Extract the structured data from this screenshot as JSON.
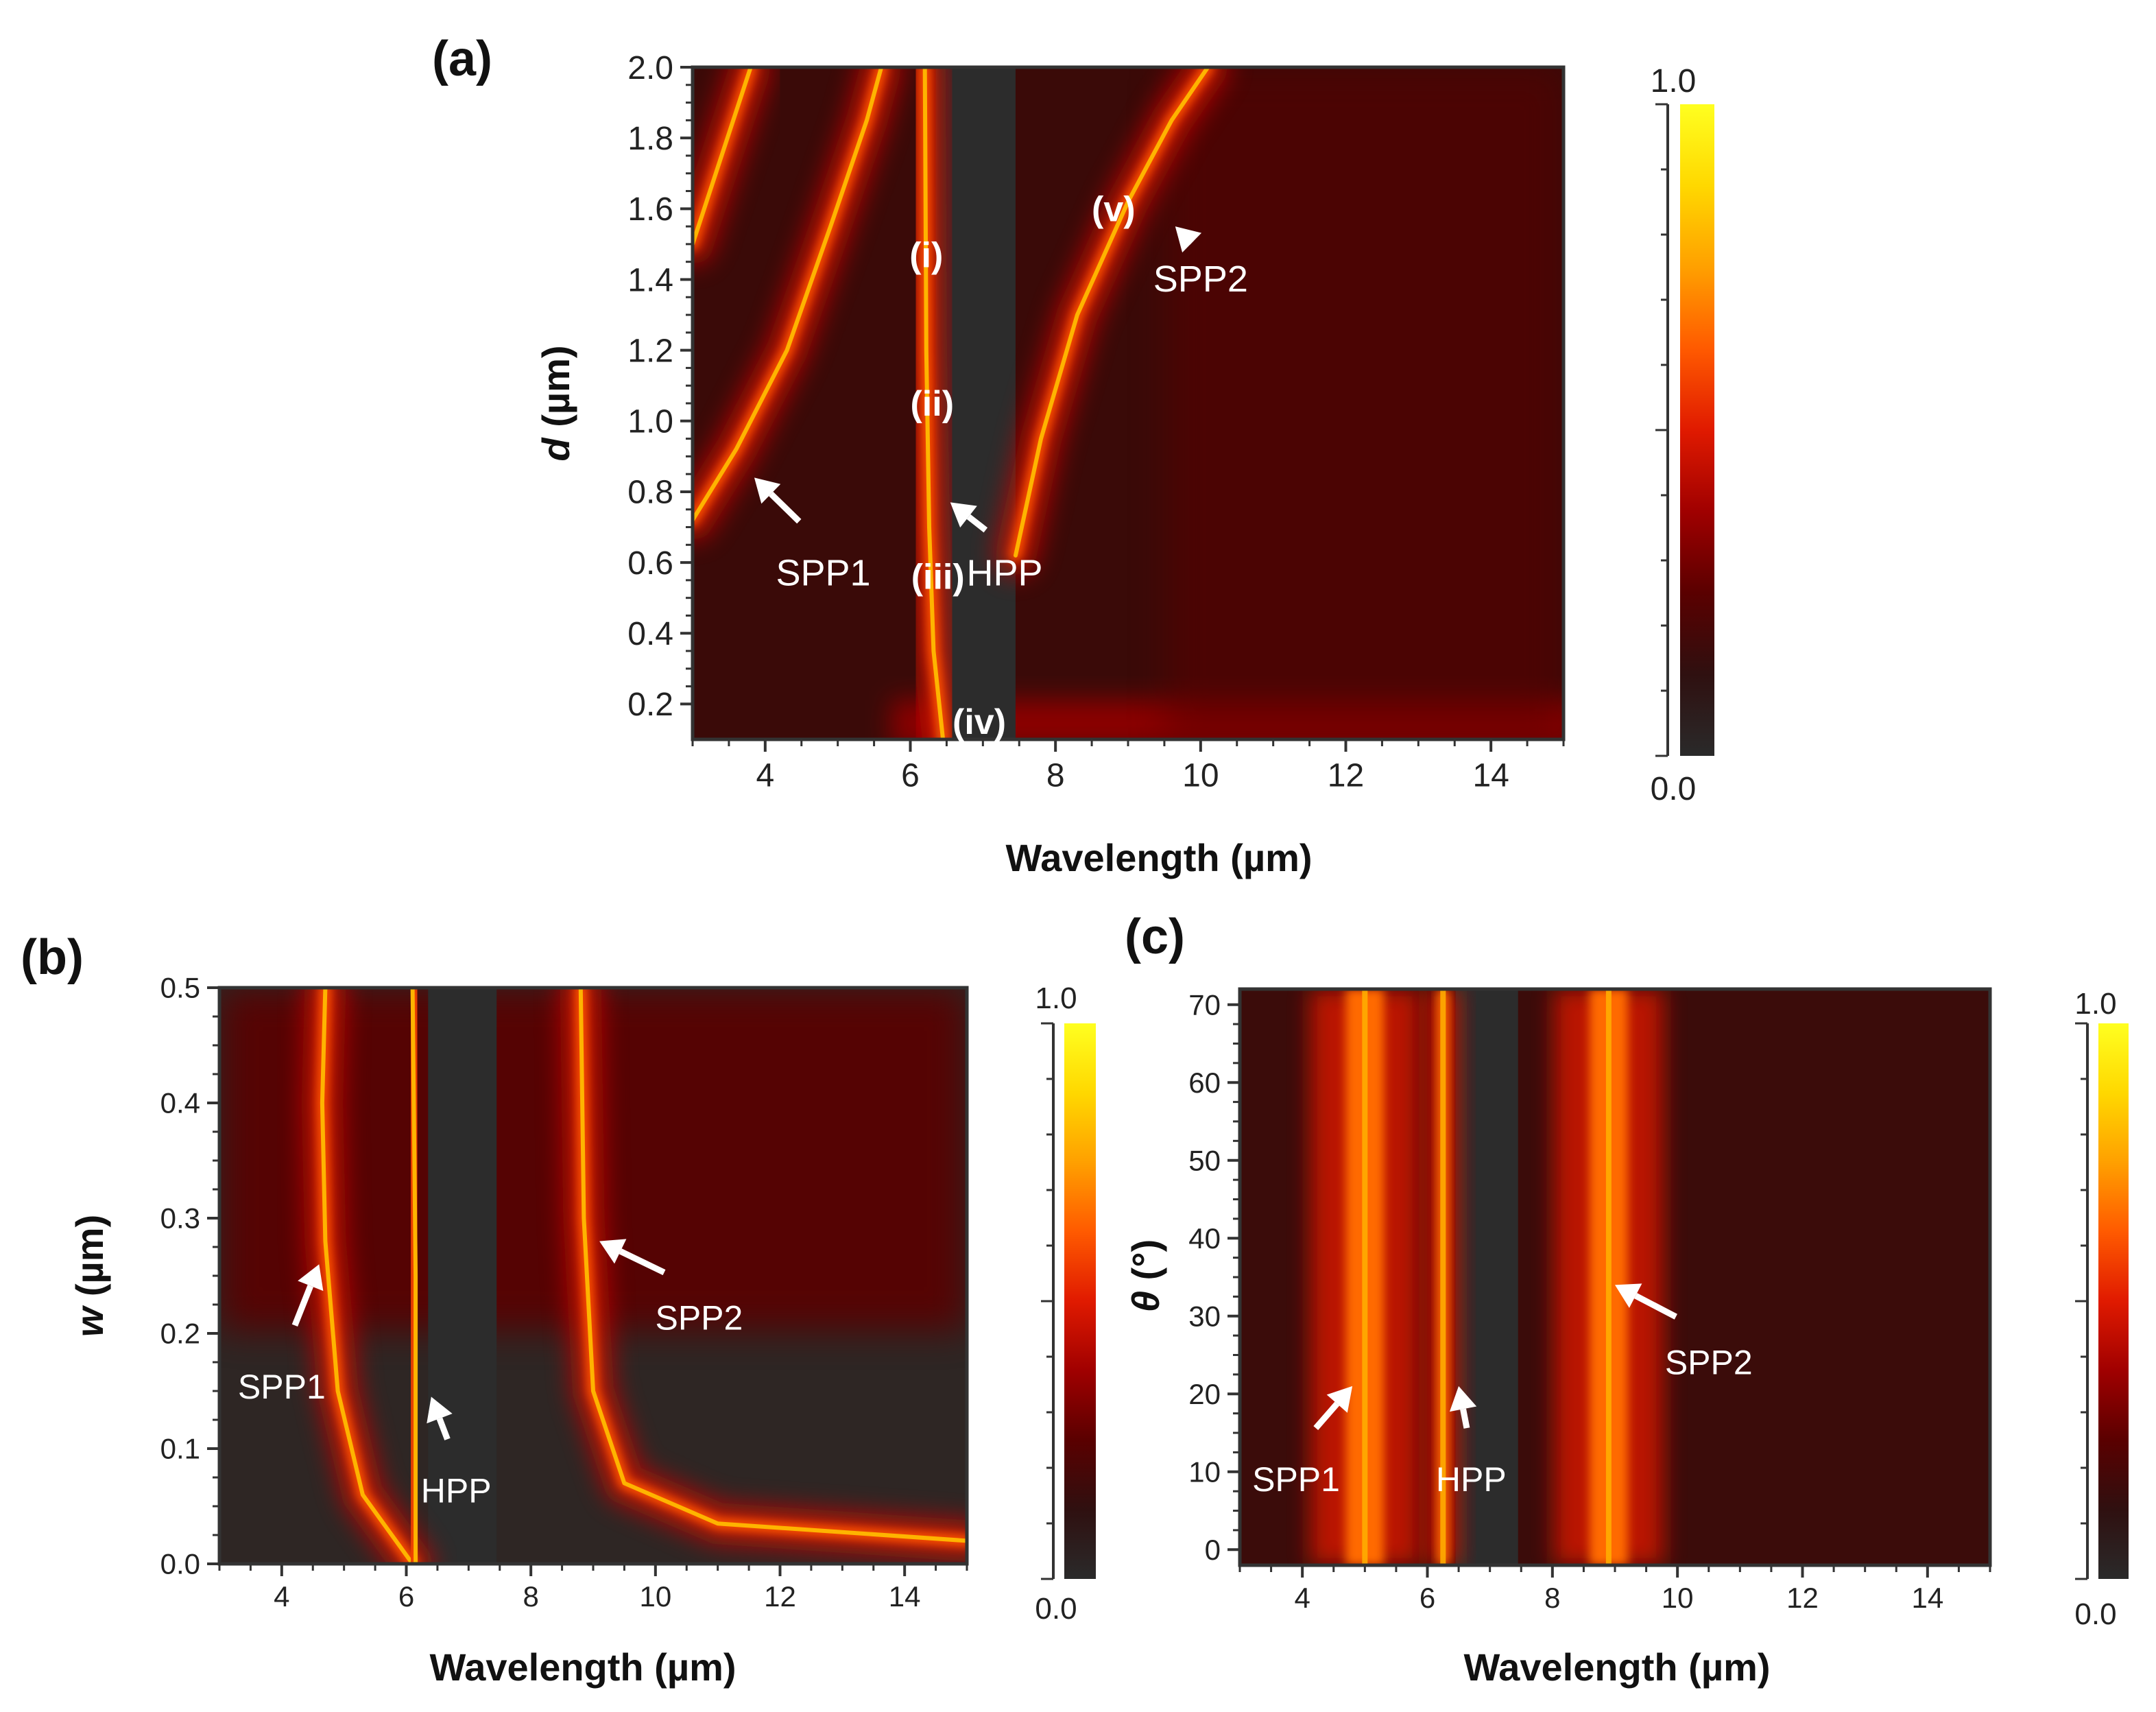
{
  "colorbar": {
    "max_label": "1.0",
    "min_label": "0.0",
    "stops": [
      "#2a2a2a",
      "#2f1010",
      "#5a0000",
      "#a00000",
      "#e01a00",
      "#ff5a00",
      "#ffa000",
      "#ffd800",
      "#ffff20"
    ]
  },
  "chart_data": [
    {
      "type": "heatmap",
      "panel_label": "(a)",
      "xlabel": "Wavelength (µm)",
      "ylabel_symbol": "d",
      "ylabel_unit": " (µm)",
      "xlim": [
        3,
        15
      ],
      "ylim": [
        0.1,
        2.0
      ],
      "xticks": [
        4,
        6,
        8,
        10,
        12,
        14
      ],
      "xtick_labels": [
        "4",
        "6",
        "8",
        "10",
        "12",
        "14"
      ],
      "yticks": [
        0.2,
        0.4,
        0.6,
        0.8,
        1.0,
        1.2,
        1.4,
        1.6,
        1.8,
        2.0
      ],
      "ytick_labels": [
        "0.2",
        "0.4",
        "0.6",
        "0.8",
        "1.0",
        "1.2",
        "1.4",
        "1.6",
        "1.8",
        "2.0"
      ],
      "colorbar": {
        "min": 0.0,
        "max": 1.0
      },
      "gap_region": [
        6.35,
        7.45
      ],
      "bands": [
        {
          "name": "SPP1-a",
          "points": [
            [
              3.0,
              0.72
            ],
            [
              3.6,
              0.92
            ],
            [
              4.3,
              1.2
            ],
            [
              4.9,
              1.55
            ],
            [
              5.4,
              1.85
            ],
            [
              5.6,
              2.0
            ]
          ]
        },
        {
          "name": "SPP1-b",
          "points": [
            [
              3.0,
              1.5
            ],
            [
              3.4,
              1.75
            ],
            [
              3.8,
              2.0
            ]
          ]
        },
        {
          "name": "HPP",
          "points": [
            [
              6.45,
              0.1
            ],
            [
              6.32,
              0.35
            ],
            [
              6.26,
              0.7
            ],
            [
              6.22,
              1.2
            ],
            [
              6.2,
              2.0
            ]
          ]
        },
        {
          "name": "SPP2",
          "points": [
            [
              7.45,
              0.62
            ],
            [
              7.8,
              0.95
            ],
            [
              8.3,
              1.3
            ],
            [
              9.0,
              1.62
            ],
            [
              9.6,
              1.85
            ],
            [
              10.1,
              2.0
            ]
          ]
        }
      ],
      "annotations": [
        {
          "text": "SPP1",
          "x": 4.8,
          "y": 0.59,
          "arrow_tip": [
            3.85,
            0.84
          ]
        },
        {
          "text": "HPP",
          "x": 7.3,
          "y": 0.59,
          "arrow_tip": [
            6.55,
            0.77
          ]
        },
        {
          "text": "SPP2",
          "x": 10.0,
          "y": 1.42,
          "arrow_tip": [
            9.65,
            1.55
          ]
        }
      ],
      "roman_labels": [
        {
          "text": "(i)",
          "x": 6.22,
          "y": 1.47
        },
        {
          "text": "(ii)",
          "x": 6.3,
          "y": 1.05
        },
        {
          "text": "(iii)",
          "x": 6.38,
          "y": 0.56
        },
        {
          "text": "(iv)",
          "x": 6.95,
          "y": 0.15
        },
        {
          "text": "(v)",
          "x": 8.8,
          "y": 1.6
        }
      ]
    },
    {
      "type": "heatmap",
      "panel_label": "(b)",
      "xlabel": "Wavelength (µm)",
      "ylabel_symbol": "w",
      "ylabel_unit": " (µm)",
      "xlim": [
        3,
        15
      ],
      "ylim": [
        0.0,
        0.5
      ],
      "xticks": [
        4,
        6,
        8,
        10,
        12,
        14
      ],
      "xtick_labels": [
        "4",
        "6",
        "8",
        "10",
        "12",
        "14"
      ],
      "yticks": [
        0.0,
        0.1,
        0.2,
        0.3,
        0.4,
        0.5
      ],
      "ytick_labels": [
        "0.0",
        "0.1",
        "0.2",
        "0.3",
        "0.4",
        "0.5"
      ],
      "colorbar": {
        "min": 0.0,
        "max": 1.0
      },
      "gap_region": [
        6.35,
        7.45
      ],
      "bands": [
        {
          "name": "SPP1",
          "points": [
            [
              6.1,
              0.0
            ],
            [
              5.3,
              0.06
            ],
            [
              4.9,
              0.15
            ],
            [
              4.7,
              0.28
            ],
            [
              4.65,
              0.4
            ],
            [
              4.7,
              0.5
            ]
          ]
        },
        {
          "name": "HPP",
          "points": [
            [
              6.15,
              0.0
            ],
            [
              6.15,
              0.25
            ],
            [
              6.1,
              0.5
            ]
          ]
        },
        {
          "name": "SPP2",
          "points": [
            [
              15.0,
              0.02
            ],
            [
              11.0,
              0.035
            ],
            [
              9.5,
              0.07
            ],
            [
              9.0,
              0.15
            ],
            [
              8.85,
              0.3
            ],
            [
              8.8,
              0.5
            ]
          ]
        }
      ],
      "annotations": [
        {
          "text": "SPP1",
          "x": 4.0,
          "y": 0.16,
          "arrow_tip": [
            4.6,
            0.26
          ]
        },
        {
          "text": "HPP",
          "x": 6.8,
          "y": 0.07,
          "arrow_tip": [
            6.4,
            0.145
          ]
        },
        {
          "text": "SPP2",
          "x": 10.7,
          "y": 0.22,
          "arrow_tip": [
            9.1,
            0.28
          ]
        }
      ]
    },
    {
      "type": "heatmap",
      "panel_label": "(c)",
      "xlabel": "Wavelength (µm)",
      "ylabel_symbol": "θ",
      "ylabel_unit": " (°)",
      "xlim": [
        3,
        15
      ],
      "ylim": [
        -2,
        72
      ],
      "xticks": [
        4,
        6,
        8,
        10,
        12,
        14
      ],
      "xtick_labels": [
        "4",
        "6",
        "8",
        "10",
        "12",
        "14"
      ],
      "yticks": [
        0,
        10,
        20,
        30,
        40,
        50,
        60,
        70
      ],
      "ytick_labels": [
        "0",
        "10",
        "20",
        "30",
        "40",
        "50",
        "60",
        "70"
      ],
      "colorbar": {
        "min": 0.0,
        "max": 1.0
      },
      "gap_region": [
        6.45,
        7.45
      ],
      "bands": [
        {
          "name": "SPP1",
          "x": 5.0
        },
        {
          "name": "HPP",
          "x": 6.25
        },
        {
          "name": "SPP2",
          "x": 8.9
        }
      ],
      "annotations": [
        {
          "text": "SPP1",
          "x": 3.9,
          "y": 10,
          "arrow_tip": [
            4.8,
            21
          ]
        },
        {
          "text": "HPP",
          "x": 6.7,
          "y": 10,
          "arrow_tip": [
            6.5,
            21
          ]
        },
        {
          "text": "SPP2",
          "x": 10.5,
          "y": 25,
          "arrow_tip": [
            9.0,
            34
          ]
        }
      ]
    }
  ]
}
